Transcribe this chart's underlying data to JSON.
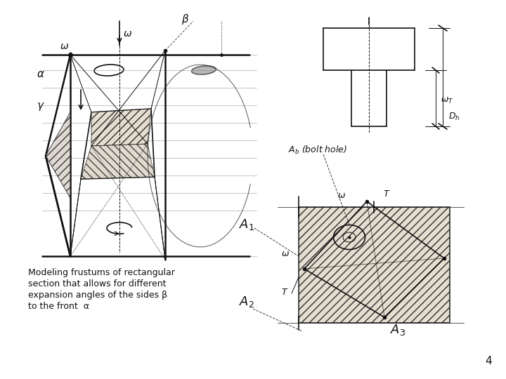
{
  "background_color": "#ffffff",
  "text_color": "#111111",
  "caption_lines": [
    "Modeling frustums of rectangular",
    "section that allows for different",
    "expansion angles of the sides β",
    "to the front  α"
  ],
  "caption_fontsize": 9.0,
  "page_number": "4",
  "fig_width": 7.2,
  "fig_height": 5.4
}
